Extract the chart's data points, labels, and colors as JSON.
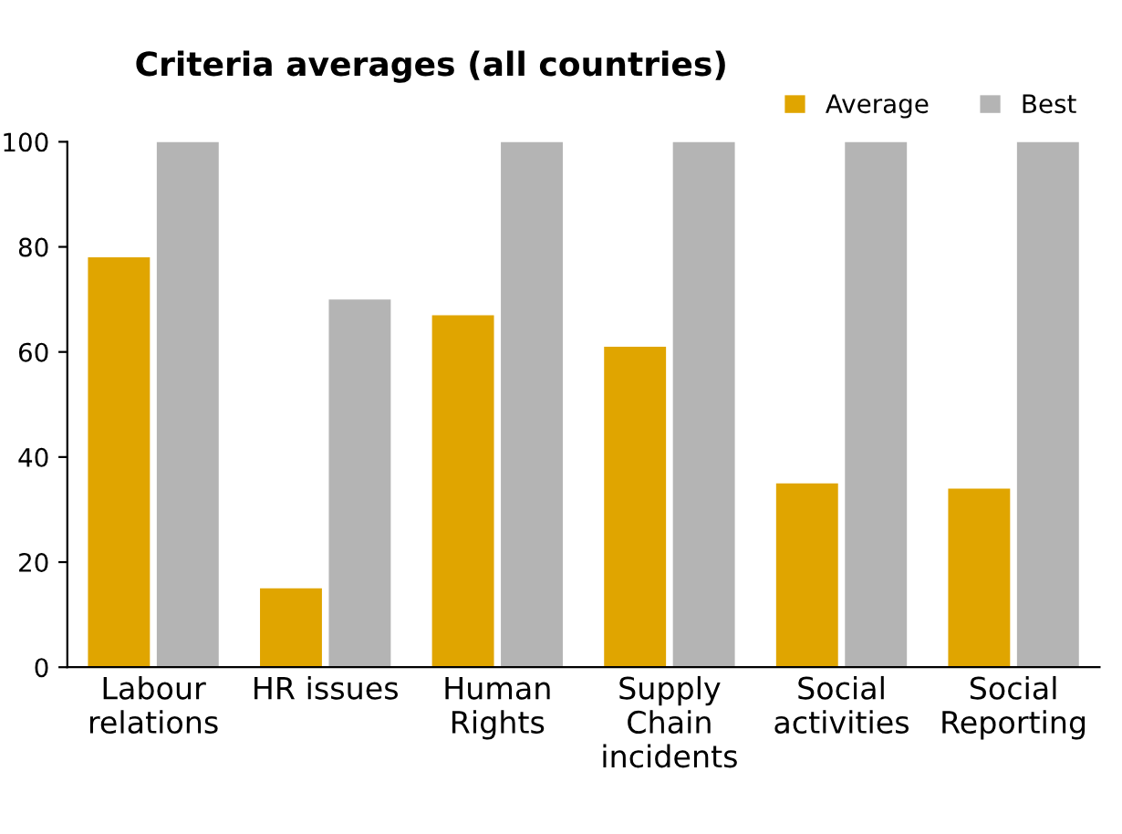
{
  "chart_data": {
    "type": "bar",
    "title": "Criteria averages (all countries)",
    "categories": [
      "Labour\nrelations",
      "HR issues",
      "Human\nRights",
      "Supply\nChain\nincidents",
      "Social\nactivities",
      "Social\nReporting"
    ],
    "series": [
      {
        "name": "Average",
        "color": "#e0a500",
        "values": [
          78,
          15,
          67,
          61,
          35,
          34
        ]
      },
      {
        "name": "Best",
        "color": "#b4b4b4",
        "values": [
          100,
          70,
          100,
          100,
          100,
          100
        ]
      }
    ],
    "ylim": [
      0,
      100
    ],
    "yticks": [
      0,
      20,
      40,
      60,
      80,
      100
    ],
    "grid": false,
    "legend": "top right"
  }
}
